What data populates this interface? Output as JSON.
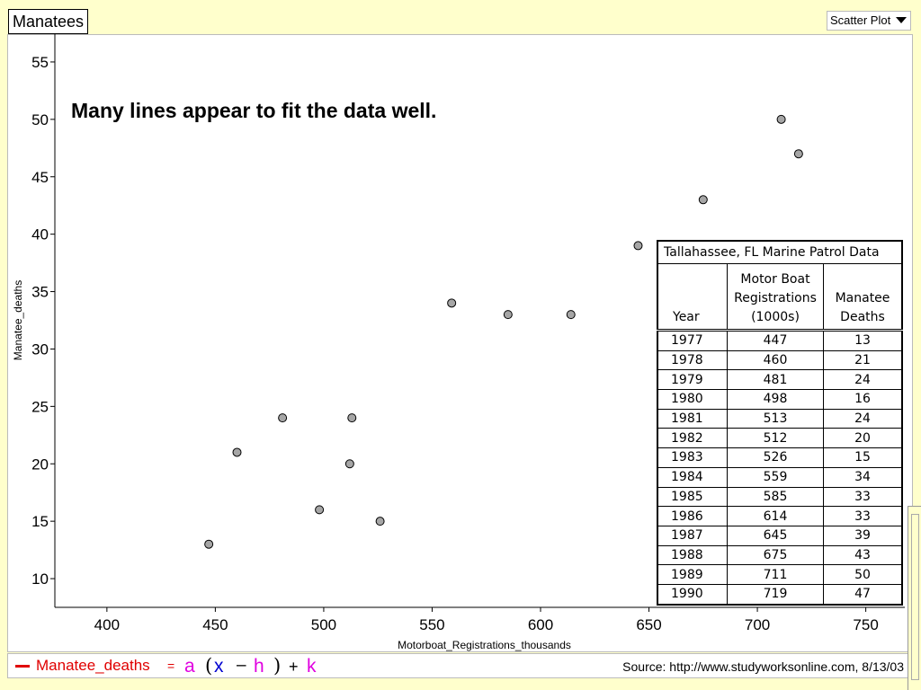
{
  "window": {
    "title": "Manatees"
  },
  "plot_type_menu": {
    "label": "Scatter Plot",
    "icon": "chevron-down-icon"
  },
  "annotation": "Many lines appear to fit the data well.",
  "chart_data": {
    "type": "scatter",
    "xlabel": "Motorboat_Registrations_thousands",
    "ylabel": "Manatee_deaths",
    "xlim": [
      376,
      768
    ],
    "ylim": [
      7.5,
      57.5
    ],
    "xticks": [
      400,
      450,
      500,
      550,
      600,
      650,
      700,
      750
    ],
    "yticks": [
      10,
      15,
      20,
      25,
      30,
      35,
      40,
      45,
      50,
      55
    ],
    "grid": false,
    "point_color": "#a6a6a6",
    "points": [
      {
        "x": 447,
        "y": 13
      },
      {
        "x": 460,
        "y": 21
      },
      {
        "x": 481,
        "y": 24
      },
      {
        "x": 498,
        "y": 16
      },
      {
        "x": 513,
        "y": 24
      },
      {
        "x": 512,
        "y": 20
      },
      {
        "x": 526,
        "y": 15
      },
      {
        "x": 559,
        "y": 34
      },
      {
        "x": 585,
        "y": 33
      },
      {
        "x": 614,
        "y": 33
      },
      {
        "x": 645,
        "y": 39
      },
      {
        "x": 675,
        "y": 43
      },
      {
        "x": 711,
        "y": 50
      },
      {
        "x": 719,
        "y": 47
      }
    ]
  },
  "data_table": {
    "caption": "Tallahassee, FL Marine Patrol Data",
    "headers": {
      "year": "Year",
      "registrations_1": "Motor Boat",
      "registrations_2": "Registrations",
      "registrations_3": "(1000s)",
      "deaths_1": "Manatee",
      "deaths_2": "Deaths"
    },
    "rows": [
      [
        "1977",
        "447",
        "13"
      ],
      [
        "1978",
        "460",
        "21"
      ],
      [
        "1979",
        "481",
        "24"
      ],
      [
        "1980",
        "498",
        "16"
      ],
      [
        "1981",
        "513",
        "24"
      ],
      [
        "1982",
        "512",
        "20"
      ],
      [
        "1983",
        "526",
        "15"
      ],
      [
        "1984",
        "559",
        "34"
      ],
      [
        "1985",
        "585",
        "33"
      ],
      [
        "1986",
        "614",
        "33"
      ],
      [
        "1987",
        "645",
        "39"
      ],
      [
        "1988",
        "675",
        "43"
      ],
      [
        "1989",
        "711",
        "50"
      ],
      [
        "1990",
        "719",
        "47"
      ]
    ]
  },
  "formula": {
    "lhs": "Manatee_deaths",
    "eq": "=",
    "a": "a",
    "lparen": "(",
    "x": "x",
    "minus": "–",
    "h": "h",
    "rparen": ")",
    "plus": "+",
    "k": "k",
    "line_color": "#e00000"
  },
  "source": "Source: http://www.studyworksonline.com, 8/13/03"
}
